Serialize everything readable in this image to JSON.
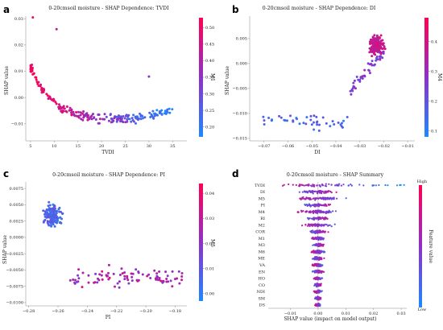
{
  "colors": {
    "low": "#1e88ff",
    "high": "#ff0052"
  },
  "chart_data": [
    {
      "letter": "a",
      "type": "scatter",
      "title": "0-20cmsoil moisture - SHAP Dependence: TVDI",
      "xlabel": "TVDI",
      "ylabel": "SHAP value",
      "colorbar_label": "M1",
      "xlim": [
        4,
        38
      ],
      "ylim": [
        -0.0165,
        0.031
      ],
      "xticks": [
        5,
        10,
        15,
        20,
        25,
        30,
        35
      ],
      "yticks": [
        0.03,
        0.02,
        0.01,
        0.0,
        -0.01
      ],
      "ytick_labels": [
        "0.03",
        "0.02",
        "0.01",
        "0.00",
        "−0.01"
      ],
      "cbar_range": [
        0.17,
        0.53
      ],
      "cbar_ticks": [
        0.5,
        0.45,
        0.4,
        0.35,
        0.3,
        0.25,
        0.2
      ],
      "cbar_tick_labels": [
        "0.50",
        "0.45",
        "0.40",
        "0.35",
        "0.30",
        "0.25",
        "0.20"
      ]
    },
    {
      "letter": "b",
      "type": "scatter",
      "title": "0-20cmsoil moisture - SHAP Dependence: DI",
      "xlabel": "DI",
      "ylabel": "SHAP value",
      "colorbar_label": "M4",
      "xlim": [
        -0.076,
        -0.007
      ],
      "ylim": [
        -0.0155,
        0.0095
      ],
      "xticks": [
        -0.07,
        -0.06,
        -0.05,
        -0.04,
        -0.03,
        -0.02,
        -0.01
      ],
      "xtick_labels": [
        "−0.07",
        "−0.06",
        "−0.05",
        "−0.04",
        "−0.03",
        "−0.02",
        "−0.01"
      ],
      "yticks": [
        0.005,
        0.0,
        -0.005,
        -0.01,
        -0.015
      ],
      "ytick_labels": [
        "0.005",
        "0.000",
        "−0.005",
        "−0.010",
        "−0.015"
      ],
      "cbar_range": [
        0.08,
        0.48
      ],
      "cbar_ticks": [
        0.4,
        0.3,
        0.2,
        0.1
      ],
      "cbar_tick_labels": [
        "0.4",
        "0.3",
        "0.2",
        "0.1"
      ]
    },
    {
      "letter": "c",
      "type": "scatter",
      "title": "0-20cmsoil moisture - SHAP Dependence: PI",
      "xlabel": "PI",
      "ylabel": "SHAP value",
      "colorbar_label": "M5",
      "xlim": [
        -0.282,
        -0.172
      ],
      "ylim": [
        -0.0105,
        0.0085
      ],
      "xticks": [
        -0.28,
        -0.26,
        -0.24,
        -0.22,
        -0.2,
        -0.18
      ],
      "xtick_labels": [
        "−0.28",
        "−0.26",
        "−0.24",
        "−0.22",
        "−0.20",
        "−0.18"
      ],
      "yticks": [
        0.0075,
        0.005,
        0.0025,
        0.0,
        -0.0025,
        -0.005,
        -0.0075,
        -0.01
      ],
      "ytick_labels": [
        "0.0075",
        "0.0050",
        "0.0025",
        "0.0000",
        "−0.0025",
        "−0.0050",
        "−0.0075",
        "−0.0100"
      ],
      "cbar_range": [
        -0.003,
        0.044
      ],
      "cbar_ticks": [
        0.04,
        0.03,
        0.02,
        0.01,
        0.0
      ],
      "cbar_tick_labels": [
        "0.04",
        "0.03",
        "0.02",
        "0.01",
        "0.00"
      ]
    },
    {
      "letter": "d",
      "type": "beeswarm",
      "title": "0-20cmsoil moisture - SHAP Summary",
      "xlabel": "SHAP value (impact on model output)",
      "colorbar_label": "Feature value",
      "colorbar_high": "High",
      "colorbar_low": "Low",
      "features": [
        "TVDI",
        "DI",
        "M5",
        "PI",
        "M4",
        "RI",
        "M2",
        "COR",
        "M1",
        "M3",
        "M6",
        "ME",
        "VA",
        "EN",
        "HO",
        "CO",
        "NDI",
        "SM",
        "DS"
      ],
      "spread": [
        0.027,
        0.014,
        0.021,
        0.011,
        0.016,
        0.009,
        0.013,
        0.007,
        0.006,
        0.005,
        0.0055,
        0.0045,
        0.005,
        0.004,
        0.0035,
        0.003,
        0.003,
        0.0025,
        0.002
      ],
      "xlim": [
        -0.018,
        0.032
      ],
      "xticks": [
        -0.01,
        0.0,
        0.01,
        0.02,
        0.03
      ],
      "xtick_labels": [
        "−0.01",
        "0.00",
        "0.01",
        "0.02",
        "0.03"
      ]
    }
  ]
}
